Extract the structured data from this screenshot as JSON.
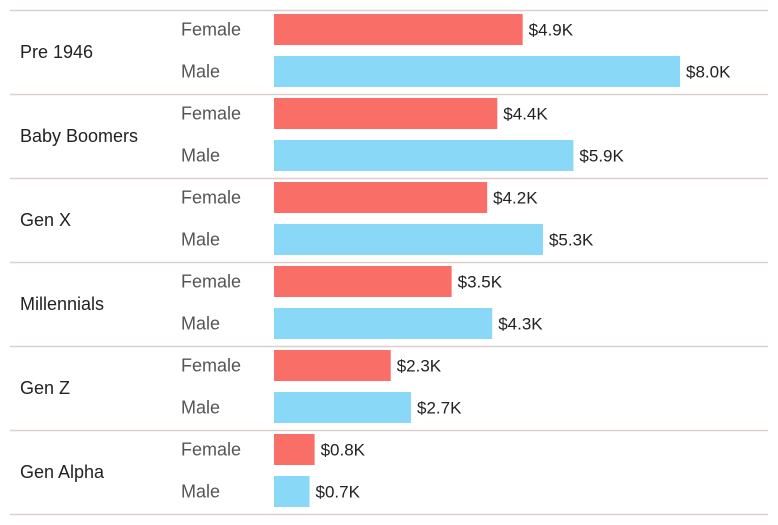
{
  "chart_data": {
    "type": "bar",
    "orientation": "horizontal",
    "grid": false,
    "categories": [
      "Pre 1946",
      "Baby Boomers",
      "Gen X",
      "Millennials",
      "Gen Z",
      "Gen Alpha"
    ],
    "series": [
      {
        "name": "Female",
        "color": "#F96E67",
        "values": [
          4.9,
          4.4,
          4.2,
          3.5,
          2.3,
          0.8
        ],
        "labels": [
          "$4.9K",
          "$4.4K",
          "$4.2K",
          "$3.5K",
          "$2.3K",
          "$0.8K"
        ]
      },
      {
        "name": "Male",
        "color": "#8AD8F8",
        "values": [
          8.0,
          5.9,
          5.3,
          4.3,
          2.7,
          0.7
        ],
        "labels": [
          "$8.0K",
          "$5.9K",
          "$5.3K",
          "$4.3K",
          "$2.7K",
          "$0.7K"
        ]
      }
    ],
    "xlim": [
      0,
      8.0
    ],
    "separator_color": "#D9D0CB"
  }
}
